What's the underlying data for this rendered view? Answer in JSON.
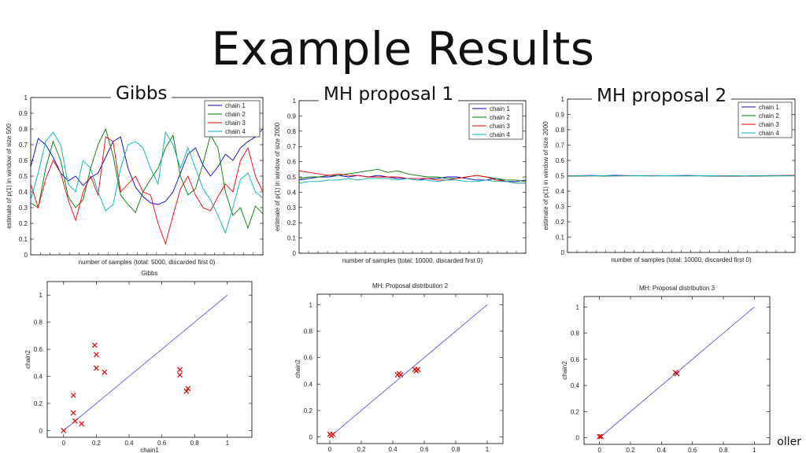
{
  "page": {
    "title": "Example Results",
    "headings": [
      "Gibbs",
      "MH proposal 1",
      "MH proposal 2"
    ],
    "footer_fragment": "oller"
  },
  "chart_data": [
    {
      "type": "line",
      "ylabel": "estimate of p(1) in window of size 500",
      "xlabel": "number of samples (total: 5000, discarded first 0)",
      "ylim": [
        0,
        1
      ],
      "yticks": [
        "0",
        "0.1",
        "0.2",
        "0.3",
        "0.4",
        "0.5",
        "0.6",
        "0.7",
        "0.8",
        "0.9",
        "1"
      ],
      "legend_position": "top-right",
      "series": [
        {
          "name": "chain 1",
          "color": "#0000cc",
          "values": [
            0.56,
            0.74,
            0.7,
            0.62,
            0.52,
            0.47,
            0.5,
            0.44,
            0.49,
            0.52,
            0.62,
            0.72,
            0.75,
            0.55,
            0.43,
            0.37,
            0.33,
            0.32,
            0.34,
            0.4,
            0.52,
            0.64,
            0.68,
            0.57,
            0.5,
            0.56,
            0.64,
            0.6,
            0.68,
            0.72,
            0.75,
            0.8
          ]
        },
        {
          "name": "chain 2",
          "color": "#007700",
          "values": [
            0.33,
            0.3,
            0.55,
            0.72,
            0.6,
            0.37,
            0.3,
            0.35,
            0.55,
            0.7,
            0.8,
            0.63,
            0.38,
            0.32,
            0.27,
            0.4,
            0.48,
            0.55,
            0.68,
            0.76,
            0.5,
            0.38,
            0.42,
            0.58,
            0.76,
            0.68,
            0.4,
            0.25,
            0.3,
            0.17,
            0.31,
            0.26
          ]
        },
        {
          "name": "chain 3",
          "color": "#ee0000",
          "values": [
            0.45,
            0.3,
            0.48,
            0.6,
            0.52,
            0.35,
            0.22,
            0.4,
            0.5,
            0.38,
            0.75,
            0.72,
            0.4,
            0.45,
            0.5,
            0.4,
            0.38,
            0.2,
            0.07,
            0.25,
            0.42,
            0.5,
            0.38,
            0.3,
            0.28,
            0.37,
            0.45,
            0.4,
            0.6,
            0.68,
            0.5,
            0.4
          ]
        },
        {
          "name": "chain 4",
          "color": "#00b0b0",
          "values": [
            0.35,
            0.52,
            0.72,
            0.78,
            0.7,
            0.45,
            0.4,
            0.6,
            0.55,
            0.4,
            0.28,
            0.32,
            0.55,
            0.7,
            0.72,
            0.68,
            0.55,
            0.45,
            0.78,
            0.7,
            0.55,
            0.68,
            0.55,
            0.42,
            0.35,
            0.25,
            0.14,
            0.3,
            0.48,
            0.52,
            0.4,
            0.36
          ]
        }
      ]
    },
    {
      "type": "line",
      "ylabel": "estimate of p(1) in window of size 2000",
      "xlabel": "number of samples (total: 10000, discarded first 0)",
      "ylim": [
        0,
        1
      ],
      "yticks": [
        "0",
        "0.1",
        "0.2",
        "0.3",
        "0.4",
        "0.5",
        "0.6",
        "0.7",
        "0.8",
        "0.9",
        "1"
      ],
      "legend_position": "top-right",
      "series": [
        {
          "name": "chain 1",
          "color": "#0000cc",
          "values": [
            0.48,
            0.49,
            0.5,
            0.5,
            0.51,
            0.5,
            0.51,
            0.5,
            0.51,
            0.5,
            0.49,
            0.49,
            0.48,
            0.49,
            0.49,
            0.5,
            0.5,
            0.49,
            0.48,
            0.48,
            0.49,
            0.47,
            0.47,
            0.48
          ]
        },
        {
          "name": "chain 2",
          "color": "#007700",
          "values": [
            0.49,
            0.5,
            0.5,
            0.51,
            0.51,
            0.52,
            0.53,
            0.54,
            0.55,
            0.53,
            0.54,
            0.52,
            0.51,
            0.5,
            0.5,
            0.49,
            0.49,
            0.5,
            0.51,
            0.5,
            0.49,
            0.48,
            0.48,
            0.47
          ]
        },
        {
          "name": "chain 3",
          "color": "#ee0000",
          "values": [
            0.54,
            0.53,
            0.52,
            0.51,
            0.52,
            0.51,
            0.51,
            0.5,
            0.5,
            0.5,
            0.5,
            0.49,
            0.49,
            0.49,
            0.48,
            0.48,
            0.49,
            0.5,
            0.51,
            0.5,
            0.48,
            0.47,
            0.46,
            0.46
          ]
        },
        {
          "name": "chain 4",
          "color": "#00b0b0",
          "values": [
            0.46,
            0.47,
            0.47,
            0.48,
            0.48,
            0.49,
            0.48,
            0.49,
            0.49,
            0.49,
            0.48,
            0.49,
            0.48,
            0.48,
            0.47,
            0.48,
            0.48,
            0.47,
            0.47,
            0.48,
            0.47,
            0.47,
            0.46,
            0.46
          ]
        }
      ]
    },
    {
      "type": "line",
      "ylabel": "estimate of p(1) in window of size 2000",
      "xlabel": "number of samples (total: 10000, discarded first 0)",
      "ylim": [
        0,
        1
      ],
      "yticks": [
        "0",
        "0.1",
        "0.2",
        "0.3",
        "0.4",
        "0.5",
        "0.6",
        "0.7",
        "0.8",
        "0.9",
        "1"
      ],
      "legend_position": "top-right",
      "series": [
        {
          "name": "chain 1",
          "color": "#0000cc",
          "values": [
            0.497,
            0.5,
            0.502,
            0.5,
            0.503,
            0.501,
            0.5,
            0.499,
            0.5,
            0.501,
            0.502,
            0.5,
            0.499,
            0.498,
            0.497,
            0.499,
            0.5,
            0.501,
            0.5,
            0.5
          ]
        },
        {
          "name": "chain 2",
          "color": "#007700",
          "values": [
            0.499,
            0.5,
            0.499,
            0.498,
            0.499,
            0.5,
            0.501,
            0.5,
            0.499,
            0.5,
            0.499,
            0.499,
            0.498,
            0.499,
            0.5,
            0.498,
            0.499,
            0.5,
            0.499,
            0.499
          ]
        },
        {
          "name": "chain 3",
          "color": "#ee0000",
          "values": [
            0.5,
            0.498,
            0.499,
            0.5,
            0.499,
            0.5,
            0.5,
            0.501,
            0.5,
            0.499,
            0.5,
            0.5,
            0.499,
            0.5,
            0.498,
            0.497,
            0.498,
            0.5,
            0.502,
            0.503
          ]
        },
        {
          "name": "chain 4",
          "color": "#00b0b0",
          "values": [
            0.498,
            0.499,
            0.5,
            0.5,
            0.499,
            0.499,
            0.5,
            0.499,
            0.5,
            0.5,
            0.499,
            0.5,
            0.5,
            0.499,
            0.499,
            0.498,
            0.499,
            0.499,
            0.5,
            0.5
          ]
        }
      ]
    },
    {
      "type": "scatter",
      "title": "Gibbs",
      "xlabel": "chain1",
      "ylabel": "chain2",
      "xlim": [
        -0.1,
        1.15
      ],
      "ylim": [
        -0.05,
        1.1
      ],
      "xticks": [
        0,
        0.2,
        0.4,
        0.6,
        0.8,
        1
      ],
      "xtick_labels": [
        "0",
        "0.2",
        "0.4",
        "0.6",
        "0.8",
        "1"
      ],
      "yticks": [
        0,
        0.2,
        0.4,
        0.6,
        0.8,
        1
      ],
      "ytick_labels": [
        "0",
        "0.2",
        "0.4",
        "0.6",
        "0.8",
        "1"
      ],
      "diagonal": true,
      "marker_color": "#dd0000",
      "line_color": "#5555ee",
      "points": [
        [
          0.0,
          0.0
        ],
        [
          0.06,
          0.26
        ],
        [
          0.06,
          0.13
        ],
        [
          0.07,
          0.07
        ],
        [
          0.11,
          0.05
        ],
        [
          0.19,
          0.63
        ],
        [
          0.2,
          0.56
        ],
        [
          0.2,
          0.46
        ],
        [
          0.25,
          0.43
        ],
        [
          0.71,
          0.45
        ],
        [
          0.71,
          0.41
        ],
        [
          0.75,
          0.29
        ],
        [
          0.76,
          0.31
        ]
      ]
    },
    {
      "type": "scatter",
      "title": "MH: Proposal distribution 2",
      "xlabel": "chain1",
      "ylabel": "chain2",
      "xlim": [
        -0.08,
        1.1
      ],
      "ylim": [
        -0.05,
        1.08
      ],
      "xticks": [
        0,
        0.2,
        0.4,
        0.6,
        0.8,
        1
      ],
      "xtick_labels": [
        "0",
        "0.2",
        "0.4",
        "0.6",
        "0.8",
        "1"
      ],
      "yticks": [
        0,
        0.2,
        0.4,
        0.6,
        0.8,
        1
      ],
      "ytick_labels": [
        "0",
        "0.2",
        "0.4",
        "0.6",
        "0.8",
        "1"
      ],
      "diagonal": true,
      "marker_color": "#dd0000",
      "line_color": "#5555ee",
      "points": [
        [
          0.0,
          0.02
        ],
        [
          0.01,
          0.01
        ],
        [
          0.02,
          0.02
        ],
        [
          0.43,
          0.47
        ],
        [
          0.44,
          0.48
        ],
        [
          0.45,
          0.47
        ],
        [
          0.54,
          0.51
        ],
        [
          0.55,
          0.5
        ],
        [
          0.56,
          0.51
        ]
      ]
    },
    {
      "type": "scatter",
      "title": "MH: Proposal distribution 3",
      "xlabel": "chain1",
      "ylabel": "chain2",
      "xlim": [
        -0.1,
        1.1
      ],
      "ylim": [
        -0.05,
        1.08
      ],
      "xticks": [
        0,
        0.2,
        0.4,
        0.6,
        0.8,
        1
      ],
      "xtick_labels": [
        "0",
        "0.2",
        "0.4",
        "0.6",
        "0.8",
        "1"
      ],
      "yticks": [
        0,
        0.2,
        0.4,
        0.6,
        0.8,
        1
      ],
      "ytick_labels": [
        "0",
        "0.2",
        "0.4",
        "0.6",
        "0.8",
        "1"
      ],
      "diagonal": true,
      "marker_color": "#dd0000",
      "line_color": "#5555ee",
      "points": [
        [
          0.0,
          0.01
        ],
        [
          0.01,
          0.01
        ],
        [
          0.49,
          0.5
        ],
        [
          0.5,
          0.49
        ]
      ]
    }
  ]
}
